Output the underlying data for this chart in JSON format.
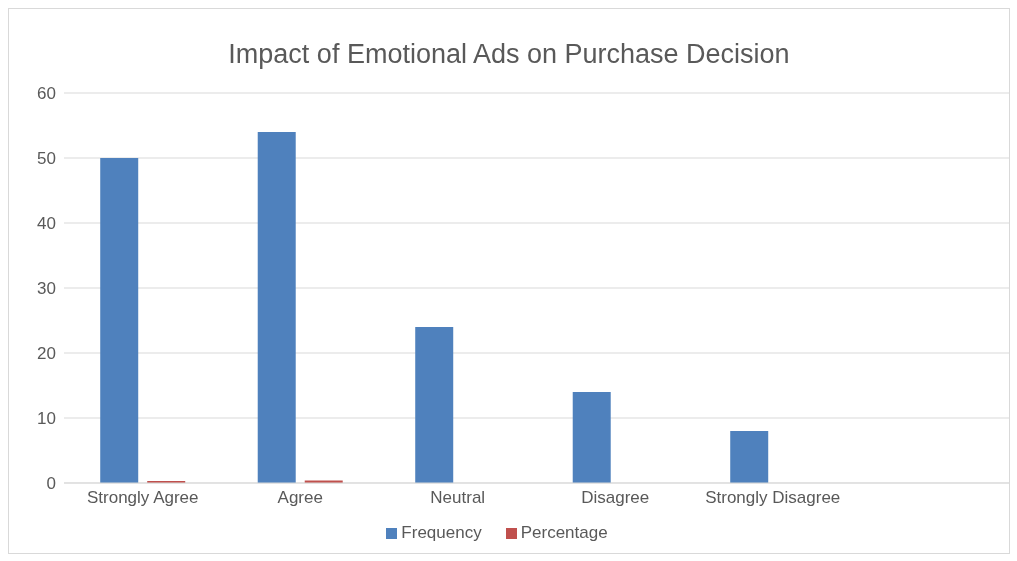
{
  "chart_data": {
    "type": "bar",
    "title": "Impact of Emotional Ads on Purchase Decision",
    "categories": [
      "Strongly Agree",
      "Agree",
      "Neutral",
      "Disagree",
      "Strongly Disagree",
      null
    ],
    "series": [
      {
        "name": "Frequency",
        "color": "#4f81bd",
        "values": [
          50,
          54,
          24,
          14,
          8,
          null
        ]
      },
      {
        "name": "Percentage",
        "color": "#c0504d",
        "values": [
          0.3,
          0.4,
          null,
          null,
          null,
          null
        ]
      }
    ],
    "ylim": [
      0,
      60
    ],
    "yticks": [
      0,
      10,
      20,
      30,
      40,
      50,
      60
    ],
    "grid": "y",
    "legend": "bottom"
  }
}
